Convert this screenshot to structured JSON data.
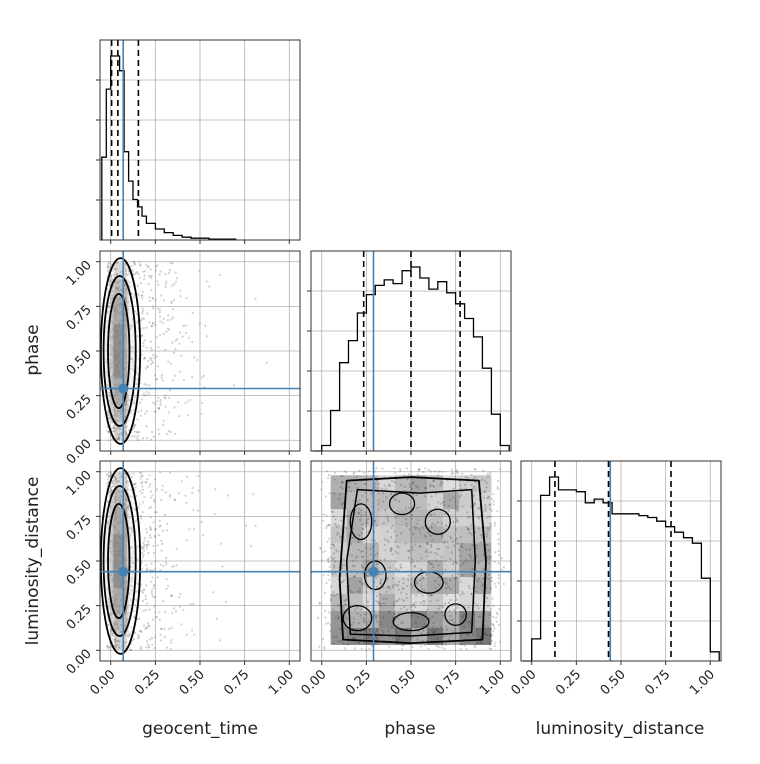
{
  "chart_data": {
    "type": "corner",
    "parameters": [
      "geocent_time",
      "phase",
      "luminosity_distance"
    ],
    "axis_labels": [
      "geocent_time",
      "phase",
      "luminosity_distance"
    ],
    "ylabels": [
      "phase",
      "luminosity_distance"
    ],
    "tick_values": [
      0.0,
      0.25,
      0.5,
      0.75,
      1.0
    ],
    "tick_labels": [
      "0.00",
      "0.25",
      "0.50",
      "0.75",
      "1.00"
    ],
    "xlim": [
      -0.06,
      1.06
    ],
    "grid": true,
    "truths": [
      0.07,
      0.29,
      0.44
    ],
    "truth_color": "#4682b4",
    "hist_color": "#000000",
    "quantile_lines": [
      [
        0.005,
        0.04,
        0.155
      ],
      [
        0.235,
        0.5,
        0.775
      ],
      [
        0.13,
        0.43,
        0.78
      ]
    ],
    "histograms": [
      {
        "parameter": "geocent_time",
        "bin_edges": [
          -0.05,
          -0.025,
          0.0,
          0.025,
          0.05,
          0.075,
          0.1,
          0.125,
          0.15,
          0.175,
          0.2,
          0.25,
          0.3,
          0.35,
          0.4,
          0.45,
          0.55,
          0.7
        ],
        "counts": [
          0.45,
          0.82,
          1.0,
          1.0,
          0.92,
          0.48,
          0.32,
          0.22,
          0.18,
          0.13,
          0.09,
          0.06,
          0.04,
          0.025,
          0.015,
          0.01,
          0.005
        ]
      },
      {
        "parameter": "phase",
        "bin_edges": [
          -0.05,
          0.0,
          0.05,
          0.1,
          0.15,
          0.2,
          0.25,
          0.3,
          0.35,
          0.4,
          0.45,
          0.5,
          0.55,
          0.6,
          0.65,
          0.7,
          0.75,
          0.8,
          0.85,
          0.9,
          0.95,
          1.0,
          1.05
        ],
        "counts": [
          0.0,
          0.03,
          0.22,
          0.48,
          0.6,
          0.75,
          0.85,
          0.9,
          0.93,
          0.91,
          0.98,
          1.0,
          0.94,
          0.88,
          0.92,
          0.86,
          0.8,
          0.72,
          0.62,
          0.45,
          0.2,
          0.03
        ]
      },
      {
        "parameter": "luminosity_distance",
        "bin_edges": [
          -0.05,
          0.0,
          0.05,
          0.1,
          0.15,
          0.2,
          0.25,
          0.3,
          0.35,
          0.4,
          0.45,
          0.5,
          0.55,
          0.6,
          0.65,
          0.7,
          0.75,
          0.8,
          0.85,
          0.9,
          0.95,
          1.0,
          1.05
        ],
        "counts": [
          0.0,
          0.12,
          0.9,
          1.0,
          0.93,
          0.93,
          0.92,
          0.86,
          0.88,
          0.86,
          0.8,
          0.8,
          0.8,
          0.79,
          0.78,
          0.76,
          0.73,
          0.7,
          0.67,
          0.64,
          0.45,
          0.05
        ]
      }
    ],
    "panels_2d": [
      {
        "x": "geocent_time",
        "y": "phase",
        "x_center": 0.05,
        "x_spread": 0.15,
        "y_range": [
          0.0,
          1.0
        ]
      },
      {
        "x": "geocent_time",
        "y": "luminosity_distance",
        "x_center": 0.05,
        "x_spread": 0.15,
        "y_range": [
          0.0,
          1.0
        ]
      },
      {
        "x": "phase",
        "y": "luminosity_distance",
        "x_range": [
          0.0,
          1.0
        ],
        "y_range": [
          0.0,
          1.0
        ]
      }
    ]
  }
}
